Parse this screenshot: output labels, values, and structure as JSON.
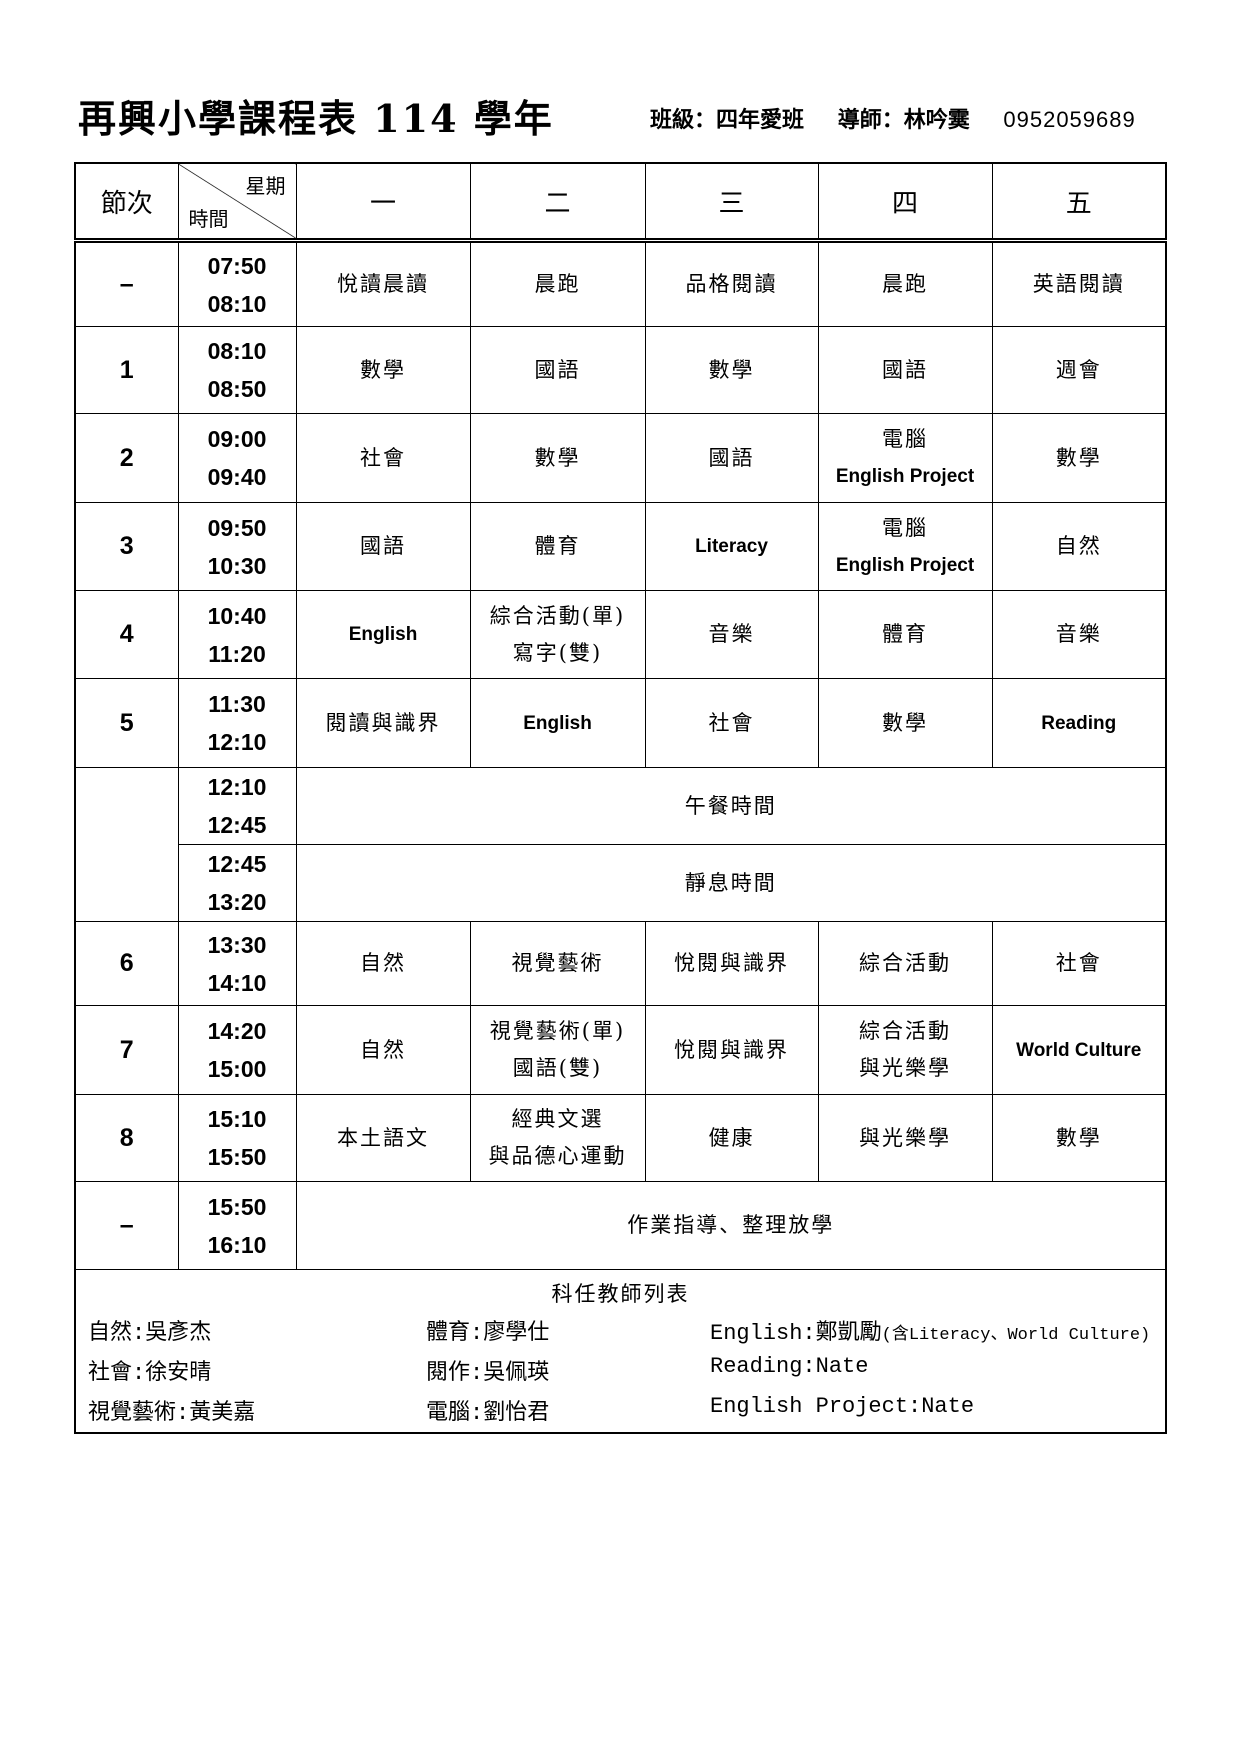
{
  "header": {
    "title": "再興小學課程表 114 學年",
    "class_label": "班級：四年愛班",
    "teacher_label": "導師：林吟霙",
    "phone": "0952059689"
  },
  "table": {
    "col_period": "節次",
    "col_weekday": "星期",
    "col_time": "時間",
    "days": [
      "一",
      "二",
      "三",
      "四",
      "五"
    ],
    "rows": [
      {
        "period": "–",
        "start": "07:50",
        "end": "08:10",
        "subjects": [
          [
            "悅讀晨讀"
          ],
          [
            "晨跑"
          ],
          [
            "品格閱讀"
          ],
          [
            "晨跑"
          ],
          [
            "英語閱讀"
          ]
        ]
      },
      {
        "period": "1",
        "start": "08:10",
        "end": "08:50",
        "subjects": [
          [
            "數學"
          ],
          [
            "國語"
          ],
          [
            "數學"
          ],
          [
            "國語"
          ],
          [
            "週會"
          ]
        ]
      },
      {
        "period": "2",
        "start": "09:00",
        "end": "09:40",
        "subjects": [
          [
            "社會"
          ],
          [
            "數學"
          ],
          [
            "國語"
          ],
          [
            "電腦",
            "English Project"
          ],
          [
            "數學"
          ]
        ]
      },
      {
        "period": "3",
        "start": "09:50",
        "end": "10:30",
        "subjects": [
          [
            "國語"
          ],
          [
            "體育"
          ],
          [
            "Literacy"
          ],
          [
            "電腦",
            "English Project"
          ],
          [
            "自然"
          ]
        ]
      },
      {
        "period": "4",
        "start": "10:40",
        "end": "11:20",
        "subjects": [
          [
            "English"
          ],
          [
            "綜合活動(單)",
            "寫字(雙)"
          ],
          [
            "音樂"
          ],
          [
            "體育"
          ],
          [
            "音樂"
          ]
        ]
      },
      {
        "period": "5",
        "start": "11:30",
        "end": "12:10",
        "subjects": [
          [
            "閱讀與識界"
          ],
          [
            "English"
          ],
          [
            "社會"
          ],
          [
            "數學"
          ],
          [
            "Reading"
          ]
        ]
      },
      {
        "period": "",
        "start": "12:10",
        "end": "12:45",
        "merged": "午餐時間",
        "group_start": true
      },
      {
        "period": "",
        "start": "12:45",
        "end": "13:20",
        "merged": "靜息時間",
        "group_cont": true
      },
      {
        "period": "6",
        "start": "13:30",
        "end": "14:10",
        "subjects": [
          [
            "自然"
          ],
          [
            "視覺藝術"
          ],
          [
            "悅閱與識界"
          ],
          [
            "綜合活動"
          ],
          [
            "社會"
          ]
        ]
      },
      {
        "period": "7",
        "start": "14:20",
        "end": "15:00",
        "subjects": [
          [
            "自然"
          ],
          [
            "視覺藝術(單)",
            "國語(雙)"
          ],
          [
            "悅閱與識界"
          ],
          [
            "綜合活動",
            "與光樂學"
          ],
          [
            "World Culture"
          ]
        ]
      },
      {
        "period": "8",
        "start": "15:10",
        "end": "15:50",
        "subjects": [
          [
            "本土語文"
          ],
          [
            "經典文選",
            "與品德心運動"
          ],
          [
            "健康"
          ],
          [
            "與光樂學"
          ],
          [
            "數學"
          ]
        ]
      },
      {
        "period": "–",
        "start": "15:50",
        "end": "16:10",
        "merged": "作業指導、整理放學"
      }
    ]
  },
  "teachers": {
    "title": "科任教師列表",
    "items": [
      "自然:吳彥杰",
      "體育:廖學仕",
      "English:鄭凱勵",
      "社會:徐安晴",
      "閱作:吳佩瑛",
      "Reading:Nate",
      "視覺藝術:黃美嘉",
      "電腦:劉怡君",
      "English Project:Nate"
    ],
    "english_note": "(含Literacy、World Culture)"
  }
}
